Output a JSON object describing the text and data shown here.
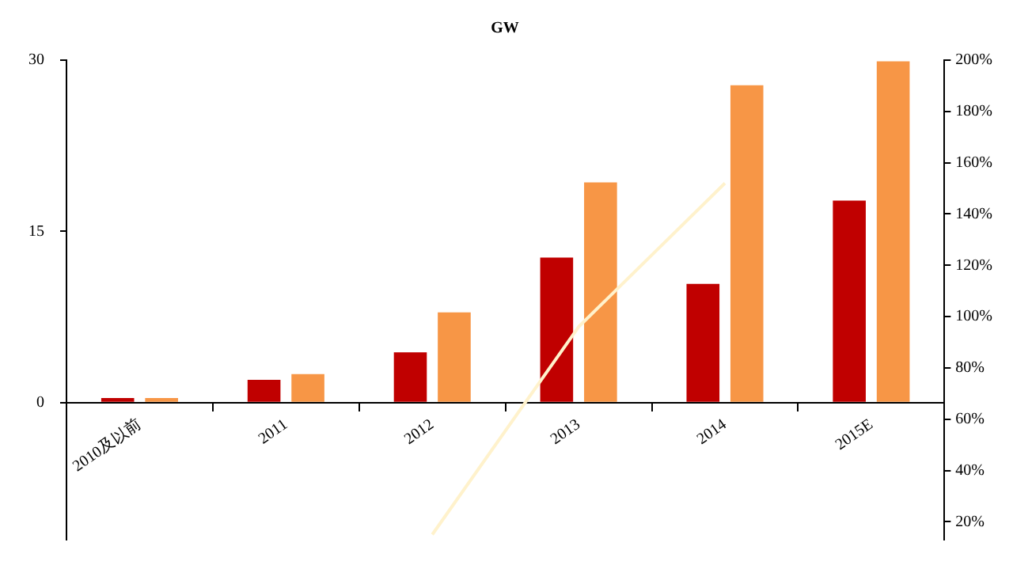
{
  "chart_data": {
    "type": "bar",
    "title": "GW",
    "categories": [
      "2010及以前",
      "2011",
      "2012",
      "2013",
      "2014",
      "2015E"
    ],
    "series": [
      {
        "color": "#c00000",
        "values": [
          0.4,
          2.0,
          4.4,
          12.7,
          10.4,
          17.7
        ]
      },
      {
        "color": "#f79646",
        "values": [
          0.4,
          2.5,
          7.9,
          19.3,
          27.8,
          29.9
        ]
      },
      {
        "type": "line",
        "axis": "y2",
        "color": "#fff2cc",
        "values": [
          null,
          null,
          15,
          96,
          152,
          null
        ]
      }
    ],
    "ylim": [
      -12,
      30
    ],
    "yticks": [
      0,
      15,
      30
    ],
    "y2lim": [
      13,
      200
    ],
    "y2ticks": [
      {
        "value": 20,
        "label": "20%"
      },
      {
        "value": 40,
        "label": "40%"
      },
      {
        "value": 60,
        "label": "60%"
      },
      {
        "value": 80,
        "label": "80%"
      },
      {
        "value": 100,
        "label": "100%"
      },
      {
        "value": 120,
        "label": "120%"
      },
      {
        "value": 140,
        "label": "140%"
      },
      {
        "value": 160,
        "label": "160%"
      },
      {
        "value": 180,
        "label": "180%"
      },
      {
        "value": 200,
        "label": "200%"
      }
    ],
    "grid": false,
    "legend": false,
    "marker": "none"
  }
}
